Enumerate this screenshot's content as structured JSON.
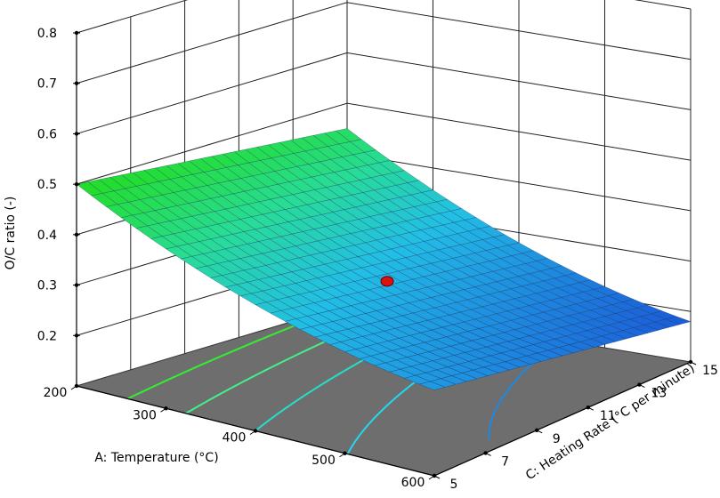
{
  "chart_data": {
    "type": "surface3d",
    "zlabel": "O/C ratio (-)",
    "xlabel": "A: Temperature (°C)",
    "ylabel": "C: Heating Rate (°C per minute)",
    "x_ticks": [
      "200",
      "300",
      "400",
      "500",
      "600"
    ],
    "y_ticks": [
      "5",
      "7",
      "9",
      "11",
      "13",
      "15"
    ],
    "z_ticks": [
      "0.2",
      "0.3",
      "0.4",
      "0.5",
      "0.6",
      "0.7",
      "0.8"
    ],
    "xlim": [
      200,
      600
    ],
    "ylim": [
      5,
      15
    ],
    "zlim": [
      0.1,
      0.8
    ],
    "grid": true,
    "surface_corners": [
      {
        "temperature": 200,
        "heating_rate": 5,
        "oc_ratio": 0.5
      },
      {
        "temperature": 200,
        "heating_rate": 15,
        "oc_ratio": 0.45
      },
      {
        "temperature": 600,
        "heating_rate": 15,
        "oc_ratio": 0.18
      },
      {
        "temperature": 600,
        "heating_rate": 5,
        "oc_ratio": 0.27
      }
    ],
    "design_point": {
      "temperature": 400,
      "heating_rate": 10,
      "oc_ratio": 0.3
    },
    "colors": {
      "surface_high": "#22dd22",
      "surface_mid": "#22c9e0",
      "surface_low": "#1a5ad8",
      "floor": "#6e6e6e",
      "point": "#dd1111",
      "contour_colors": [
        "#33ee33",
        "#44f088",
        "#22e0c8",
        "#22d8ee",
        "#1a8ae6"
      ]
    }
  }
}
